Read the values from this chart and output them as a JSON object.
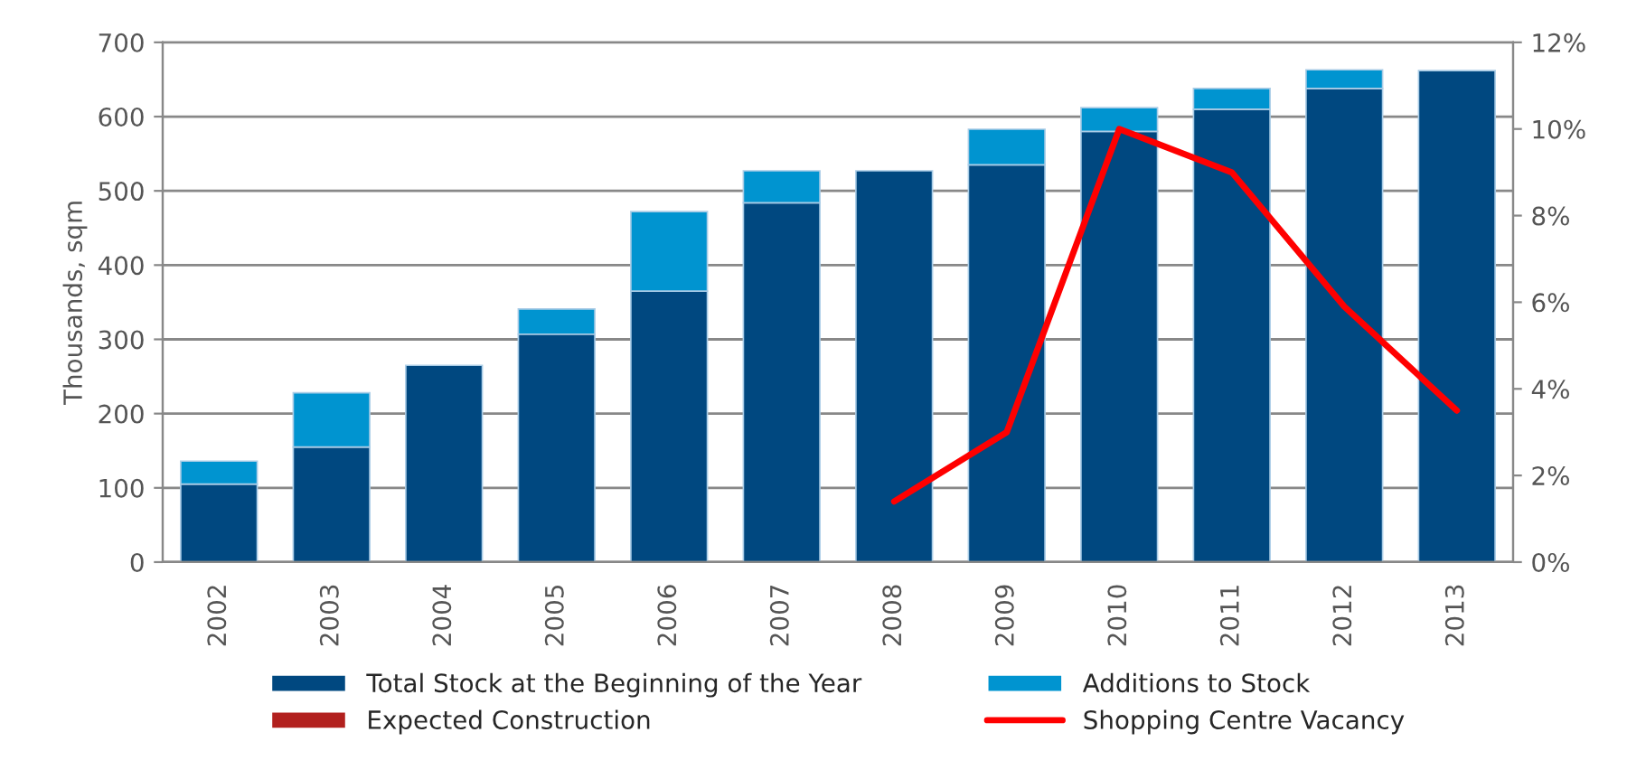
{
  "chart_data": {
    "type": "bar",
    "stacked": true,
    "ylabel": "Thousands, sqm",
    "categories": [
      "2002",
      "2003",
      "2004",
      "2005",
      "2006",
      "2007",
      "2008",
      "2009",
      "2010",
      "2011",
      "2012",
      "2013"
    ],
    "series": [
      {
        "name": "Total Stock at the Beginning of the Year",
        "color": "#004880",
        "values": [
          105,
          155,
          265,
          307,
          365,
          484,
          527,
          535,
          580,
          610,
          638,
          662
        ]
      },
      {
        "name": "Additions to Stock",
        "color": "#0094d0",
        "values": [
          31,
          73,
          null,
          34,
          107,
          43,
          null,
          48,
          32,
          28,
          25,
          null
        ]
      },
      {
        "name": "Expected Construction",
        "color": "#b2201e",
        "values": [
          null,
          null,
          null,
          null,
          null,
          null,
          null,
          null,
          null,
          null,
          null,
          null
        ]
      },
      {
        "name": "Shopping Centre Vacancy",
        "type": "line",
        "axis": "y2",
        "color": "#ff0000",
        "values": [
          null,
          null,
          null,
          null,
          null,
          null,
          1.4,
          3.0,
          10.0,
          9.0,
          5.9,
          3.5
        ]
      }
    ],
    "ylim": [
      0,
      700
    ],
    "yticks": [
      0,
      100,
      200,
      300,
      400,
      500,
      600,
      700
    ],
    "y2lim": [
      0,
      12
    ],
    "y2ticks": [
      {
        "value": 0,
        "label": "0%"
      },
      {
        "value": 2,
        "label": "2%"
      },
      {
        "value": 4,
        "label": "4%"
      },
      {
        "value": 6,
        "label": "6%"
      },
      {
        "value": 8,
        "label": "8%"
      },
      {
        "value": 10,
        "label": "10%"
      },
      {
        "value": 12,
        "label": "12%"
      }
    ],
    "grid": "y",
    "legend": "bottom"
  }
}
